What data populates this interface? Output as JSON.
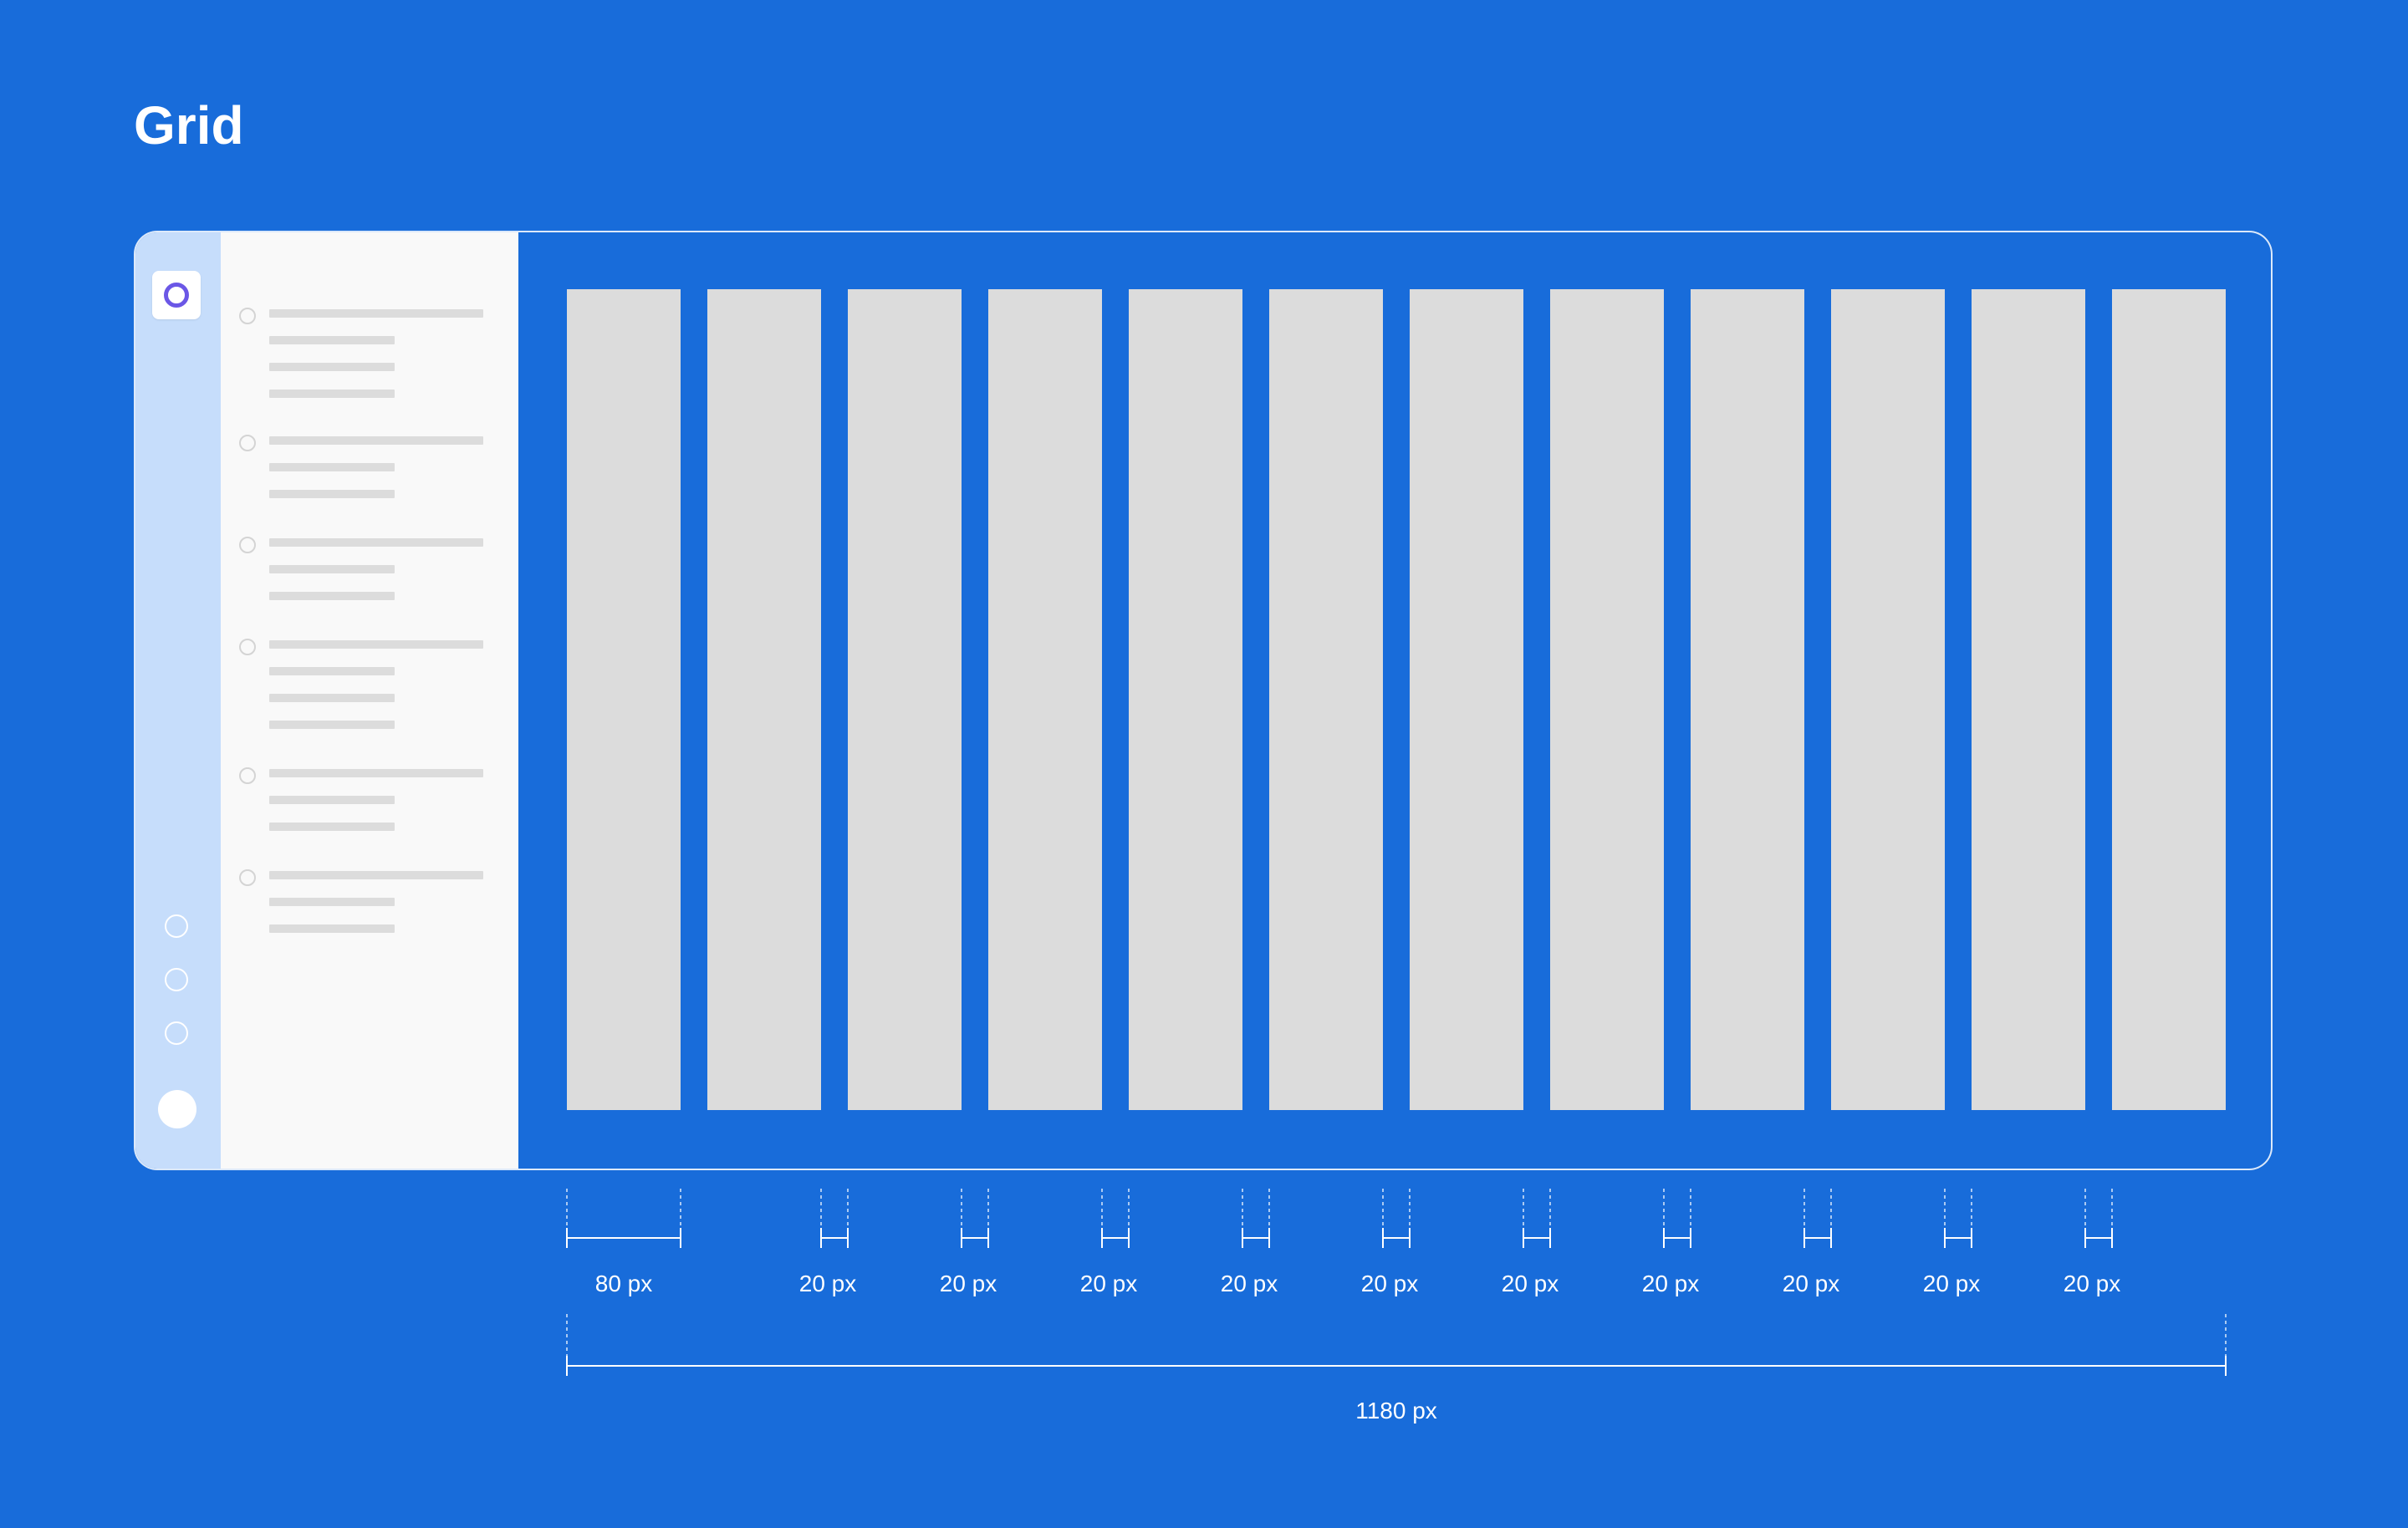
{
  "title": "Grid",
  "colors": {
    "background": "#186CDA",
    "rail": "#C6DDFB",
    "panel": "#F9F9F9",
    "column": "#DCDCDC",
    "accent": "#6B57E6"
  },
  "sidebar": {
    "logo_icon": "app-logo-icon",
    "nav_icons": [
      "nav-circle-icon",
      "nav-circle-icon",
      "nav-circle-icon"
    ],
    "avatar_icon": "avatar-icon"
  },
  "list": {
    "groups": [
      {
        "lines": 4
      },
      {
        "lines": 3
      },
      {
        "lines": 3
      },
      {
        "lines": 4
      },
      {
        "lines": 3
      },
      {
        "lines": 3
      }
    ]
  },
  "grid": {
    "columns": 12
  },
  "dimensions": {
    "column_label": "80 px",
    "gutter_labels": [
      "20 px",
      "20 px",
      "20 px",
      "20 px",
      "20 px",
      "20 px",
      "20 px",
      "20 px",
      "20 px",
      "20 px"
    ],
    "total_label": "1180 px"
  }
}
